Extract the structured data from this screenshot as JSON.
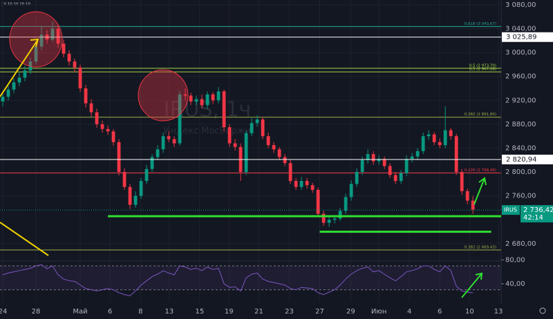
{
  "chart_data": {
    "type": "candlestick",
    "header_text": "10 10 10 10 10",
    "watermark": "IRUS, 1ч",
    "watermark_subtitle": "Индекс МосБиржи",
    "open": [
      2918,
      2926,
      2938,
      2950,
      2958,
      2970,
      2985,
      3010,
      3030,
      3022,
      3040,
      3015,
      2998,
      2985,
      2975,
      2940,
      2915,
      2900,
      2880,
      2872,
      2868,
      2850,
      2800,
      2775,
      2745,
      2760,
      2785,
      2805,
      2825,
      2838,
      2860,
      2855,
      2848,
      2930,
      2928,
      2918,
      2922,
      2912,
      2930,
      2920,
      2935,
      2875,
      2848,
      2842,
      2800,
      2865,
      2882,
      2888,
      2860,
      2845,
      2838,
      2825,
      2815,
      2785,
      2775,
      2785,
      2778,
      2770,
      2730,
      2715,
      2720,
      2722,
      2735,
      2758,
      2780,
      2800,
      2820,
      2830,
      2818,
      2822,
      2810,
      2795,
      2785,
      2798,
      2822,
      2826,
      2835,
      2860,
      2863,
      2850,
      2845,
      2870,
      2860,
      2800,
      2768,
      2752
    ],
    "high": [
      2934,
      2944,
      2957,
      2966,
      2978,
      2992,
      3018,
      3045,
      3038,
      3052,
      3046,
      3022,
      3004,
      2990,
      2980,
      2946,
      2922,
      2906,
      2886,
      2878,
      2872,
      2855,
      2806,
      2780,
      2768,
      2790,
      2812,
      2830,
      2845,
      2866,
      2868,
      2860,
      2936,
      2940,
      2933,
      2928,
      2930,
      2935,
      2934,
      2942,
      2938,
      2880,
      2855,
      2848,
      2870,
      2890,
      2895,
      2892,
      2866,
      2850,
      2842,
      2830,
      2820,
      2790,
      2792,
      2790,
      2782,
      2774,
      2735,
      2726,
      2728,
      2740,
      2764,
      2786,
      2806,
      2826,
      2838,
      2835,
      2828,
      2826,
      2815,
      2800,
      2803,
      2828,
      2832,
      2840,
      2866,
      2870,
      2867,
      2856,
      2910,
      2874,
      2864,
      2805,
      2772,
      2760
    ],
    "low": [
      2910,
      2920,
      2932,
      2944,
      2952,
      2964,
      2980,
      3004,
      3015,
      3018,
      3008,
      2992,
      2978,
      2968,
      2934,
      2908,
      2893,
      2874,
      2866,
      2862,
      2844,
      2794,
      2770,
      2738,
      2740,
      2755,
      2780,
      2800,
      2820,
      2832,
      2850,
      2842,
      2844,
      2920,
      2912,
      2912,
      2906,
      2906,
      2914,
      2915,
      2868,
      2842,
      2836,
      2785,
      2795,
      2860,
      2876,
      2855,
      2840,
      2832,
      2820,
      2810,
      2780,
      2770,
      2770,
      2772,
      2765,
      2725,
      2710,
      2708,
      2714,
      2718,
      2730,
      2752,
      2775,
      2795,
      2814,
      2812,
      2812,
      2805,
      2790,
      2780,
      2780,
      2793,
      2816,
      2820,
      2830,
      2854,
      2845,
      2840,
      2840,
      2854,
      2795,
      2762,
      2746,
      2730
    ],
    "close": [
      2926,
      2938,
      2950,
      2958,
      2970,
      2985,
      3010,
      3030,
      3022,
      3040,
      3015,
      2998,
      2985,
      2975,
      2940,
      2915,
      2900,
      2880,
      2872,
      2868,
      2850,
      2800,
      2775,
      2745,
      2760,
      2785,
      2805,
      2825,
      2838,
      2860,
      2855,
      2848,
      2930,
      2928,
      2918,
      2922,
      2912,
      2930,
      2920,
      2935,
      2875,
      2848,
      2842,
      2800,
      2865,
      2882,
      2888,
      2860,
      2845,
      2838,
      2825,
      2815,
      2785,
      2775,
      2785,
      2778,
      2770,
      2730,
      2715,
      2720,
      2722,
      2735,
      2758,
      2780,
      2800,
      2820,
      2830,
      2818,
      2822,
      2810,
      2795,
      2785,
      2798,
      2822,
      2826,
      2835,
      2860,
      2863,
      2850,
      2845,
      2870,
      2860,
      2800,
      2768,
      2752,
      2737
    ],
    "up_color": "#089981",
    "down_color": "#f23645",
    "ylim": [
      2651,
      3088
    ],
    "yticks": [
      {
        "value": 3080,
        "label": "3 080,00"
      },
      {
        "value": 3040,
        "label": "3 040,00"
      },
      {
        "value": 3000,
        "label": "3 000,00"
      },
      {
        "value": 2960,
        "label": "2 960,00"
      },
      {
        "value": 2920,
        "label": "2 920,00"
      },
      {
        "value": 2880,
        "label": "2 880,00"
      },
      {
        "value": 2840,
        "label": "2 840,00"
      },
      {
        "value": 2800,
        "label": "2 800,00"
      },
      {
        "value": 2760,
        "label": "2 760,00"
      },
      {
        "value": 2680,
        "label": "2 680,00"
      }
    ],
    "xlim": [
      -0.5,
      90.1
    ],
    "xticks": [
      {
        "value": 0,
        "label": "24"
      },
      {
        "value": 6,
        "label": "28"
      },
      {
        "value": 14,
        "label": "Май"
      },
      {
        "value": 19.4,
        "label": "6"
      },
      {
        "value": 24.9,
        "label": "8"
      },
      {
        "value": 30.1,
        "label": "13"
      },
      {
        "value": 35.6,
        "label": "15"
      },
      {
        "value": 40.9,
        "label": "19"
      },
      {
        "value": 46.3,
        "label": "21"
      },
      {
        "value": 51.8,
        "label": "23"
      },
      {
        "value": 57.3,
        "label": "27"
      },
      {
        "value": 62.9,
        "label": "29"
      },
      {
        "value": 68,
        "label": "Июн"
      },
      {
        "value": 73.5,
        "label": "4"
      },
      {
        "value": 79,
        "label": "6"
      },
      {
        "value": 84.4,
        "label": "10"
      },
      {
        "value": 89.6,
        "label": "13"
      }
    ],
    "grid": true,
    "levels": [
      {
        "value": 3025.89,
        "label": "3 025,89",
        "color": "#ffffff"
      },
      {
        "value": 2820.94,
        "label": "2 820,94",
        "color": "#ffffff"
      }
    ],
    "fib_levels": [
      {
        "value": 3043.67,
        "label": "0,618 (3 043,67)",
        "color": "#22ab94"
      },
      {
        "value": 2973.7,
        "label": "0,5 (2 973,70)",
        "color": "#a8d94a"
      },
      {
        "value": 2967.56,
        "label": "0,5 (2 967,56)",
        "color": "#a8d94a"
      },
      {
        "value": 2891.8,
        "label": "0,382 (2 891,80)",
        "color": "#9fb04a"
      },
      {
        "value": 2798.46,
        "label": "0,226 (2 798,46)",
        "color": "#f23645"
      },
      {
        "value": 2669.43,
        "label": "0,382 (2 669,43)",
        "color": "#9fb04a"
      }
    ],
    "support_lines": [
      {
        "value": 2726,
        "x": [
          19,
          90.1
        ],
        "color": "#2fe02f"
      },
      {
        "value": 2700,
        "x": [
          57.3,
          88.3
        ],
        "color": "#2fe02f"
      }
    ],
    "symbol": "IRUS",
    "last_price": {
      "value": 2736.42,
      "label": "2 736,42"
    },
    "countdown": "42:14",
    "rsi": {
      "color": "#7e57c2",
      "ylim": [
        10,
        85
      ],
      "band": [
        30,
        70
      ],
      "yticks": [
        {
          "value": 80,
          "label": "80,00"
        },
        {
          "value": 40,
          "label": "40,00"
        }
      ],
      "values": [
        55,
        58,
        60,
        62,
        64,
        66,
        70,
        72,
        65,
        70,
        55,
        48,
        45,
        44,
        38,
        32,
        30,
        28,
        30,
        32,
        30,
        25,
        22,
        20,
        28,
        38,
        45,
        52,
        56,
        62,
        58,
        55,
        70,
        68,
        64,
        66,
        62,
        68,
        64,
        66,
        40,
        34,
        35,
        28,
        50,
        56,
        58,
        48,
        44,
        42,
        40,
        38,
        32,
        30,
        34,
        33,
        32,
        25,
        22,
        26,
        30,
        38,
        48,
        56,
        62,
        66,
        68,
        60,
        62,
        56,
        50,
        45,
        52,
        60,
        62,
        65,
        70,
        70,
        64,
        60,
        70,
        62,
        36,
        28,
        26,
        25
      ]
    }
  }
}
